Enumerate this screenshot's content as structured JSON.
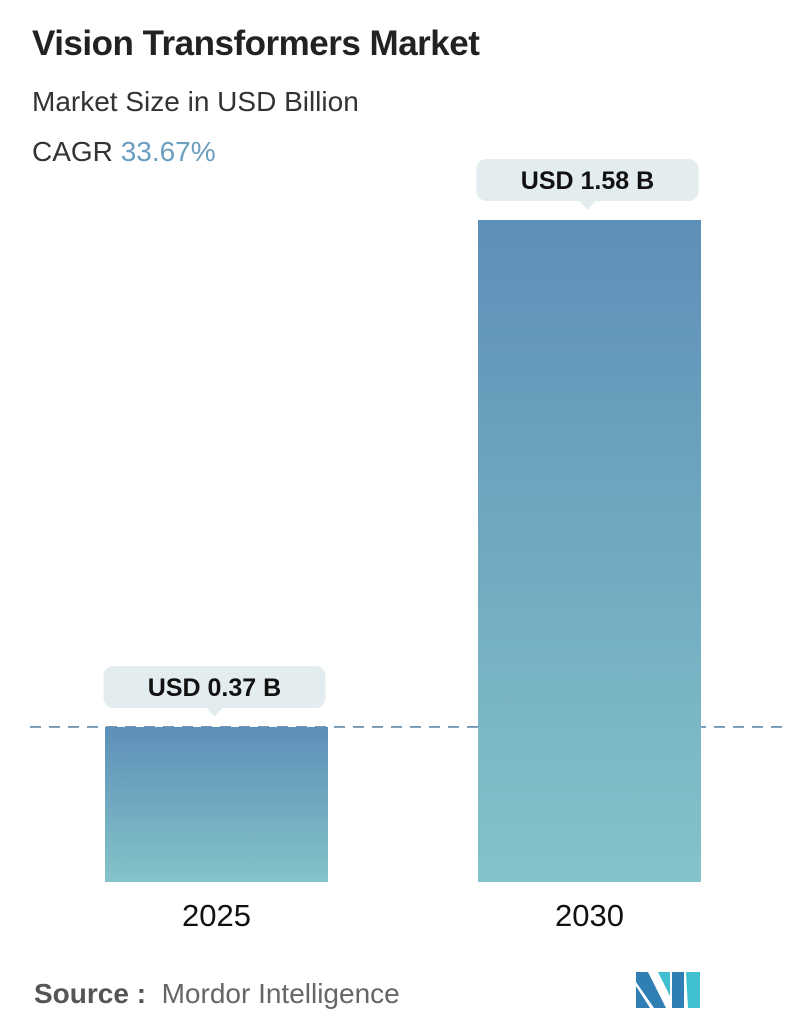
{
  "header": {
    "title": "Vision Transformers Market",
    "subtitle": "Market Size in USD Billion",
    "cagr_label": "CAGR",
    "cagr_value": "33.67%"
  },
  "chart_data": {
    "type": "bar",
    "categories": [
      "2025",
      "2030"
    ],
    "values": [
      0.37,
      1.58
    ],
    "data_labels": [
      "USD 0.37 B",
      "USD 1.58 B"
    ],
    "title": "Vision Transformers Market",
    "ylabel": "Market Size in USD Billion",
    "reference_line": 0.37,
    "grid": false,
    "colors": {
      "bar_top": "#5e8fb8",
      "bar_bottom": "#84c3c9",
      "label_bg": "#e3ecee",
      "dash": "#5f86a8"
    }
  },
  "footer": {
    "source_label": "Source :",
    "source_value": "Mordor Intelligence",
    "logo_text": "MI"
  }
}
